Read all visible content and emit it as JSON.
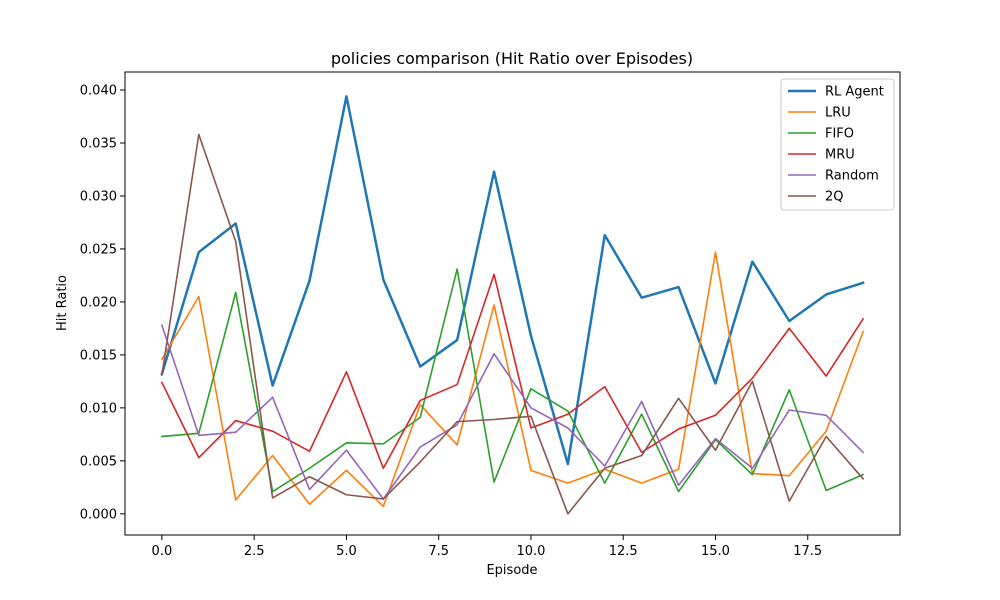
{
  "chart_data": {
    "type": "line",
    "title": "policies comparison (Hit Ratio over Episodes)",
    "xlabel": "Episode",
    "ylabel": "Hit Ratio",
    "xlim": [
      -1.0,
      20.0
    ],
    "ylim": [
      -0.002,
      0.0417
    ],
    "x": [
      0,
      1,
      2,
      3,
      4,
      5,
      6,
      7,
      8,
      9,
      10,
      11,
      12,
      13,
      14,
      15,
      16,
      17,
      18,
      19
    ],
    "xticks": [
      0.0,
      2.5,
      5.0,
      7.5,
      10.0,
      12.5,
      15.0,
      17.5
    ],
    "xtick_labels": [
      "0.0",
      "2.5",
      "5.0",
      "7.5",
      "10.0",
      "12.5",
      "15.0",
      "17.5"
    ],
    "yticks": [
      0.0,
      0.005,
      0.01,
      0.015,
      0.02,
      0.025,
      0.03,
      0.035,
      0.04
    ],
    "ytick_labels": [
      "0.000",
      "0.005",
      "0.010",
      "0.015",
      "0.020",
      "0.025",
      "0.030",
      "0.035",
      "0.040"
    ],
    "grid": false,
    "legend_position": "top-right",
    "series": [
      {
        "name": "RL Agent",
        "color": "#1f77b4",
        "emphasis": "bold",
        "values": [
          0.0132,
          0.0247,
          0.0274,
          0.0121,
          0.022,
          0.0394,
          0.0221,
          0.0139,
          0.0164,
          0.0323,
          0.0168,
          0.0047,
          0.0263,
          0.0204,
          0.0214,
          0.0123,
          0.0238,
          0.0182,
          0.0207,
          0.0218
        ]
      },
      {
        "name": "LRU",
        "color": "#ff7f0e",
        "values": [
          0.0146,
          0.0205,
          0.0013,
          0.0055,
          0.0009,
          0.0041,
          0.0007,
          0.0103,
          0.0065,
          0.0197,
          0.0041,
          0.0029,
          0.0042,
          0.0029,
          0.0042,
          0.0247,
          0.0038,
          0.0036,
          0.0078,
          0.0172
        ]
      },
      {
        "name": "FIFO",
        "color": "#2ca02c",
        "values": [
          0.0073,
          0.0076,
          0.0209,
          0.0021,
          0.0043,
          0.0067,
          0.0066,
          0.0091,
          0.0231,
          0.003,
          0.0118,
          0.0097,
          0.0029,
          0.0094,
          0.0021,
          0.007,
          0.0037,
          0.0117,
          0.0022,
          0.0037
        ]
      },
      {
        "name": "MRU",
        "color": "#d62728",
        "values": [
          0.0124,
          0.0053,
          0.0088,
          0.0078,
          0.0059,
          0.0134,
          0.0043,
          0.0107,
          0.0122,
          0.0226,
          0.0081,
          0.0094,
          0.012,
          0.0058,
          0.008,
          0.0093,
          0.0128,
          0.0175,
          0.013,
          0.0184
        ]
      },
      {
        "name": "Random",
        "color": "#9467bd",
        "values": [
          0.0178,
          0.0074,
          0.0077,
          0.011,
          0.0023,
          0.006,
          0.0014,
          0.0063,
          0.0084,
          0.0151,
          0.01,
          0.0081,
          0.0045,
          0.0106,
          0.0027,
          0.0071,
          0.0043,
          0.0098,
          0.0093,
          0.0058
        ]
      },
      {
        "name": "2Q",
        "color": "#8c564b",
        "values": [
          0.0131,
          0.0358,
          0.0257,
          0.0015,
          0.0035,
          0.0018,
          0.0014,
          0.0049,
          0.0087,
          0.0089,
          0.0092,
          0.0,
          0.0043,
          0.0055,
          0.0109,
          0.006,
          0.0125,
          0.0012,
          0.0073,
          0.0033
        ]
      }
    ]
  }
}
